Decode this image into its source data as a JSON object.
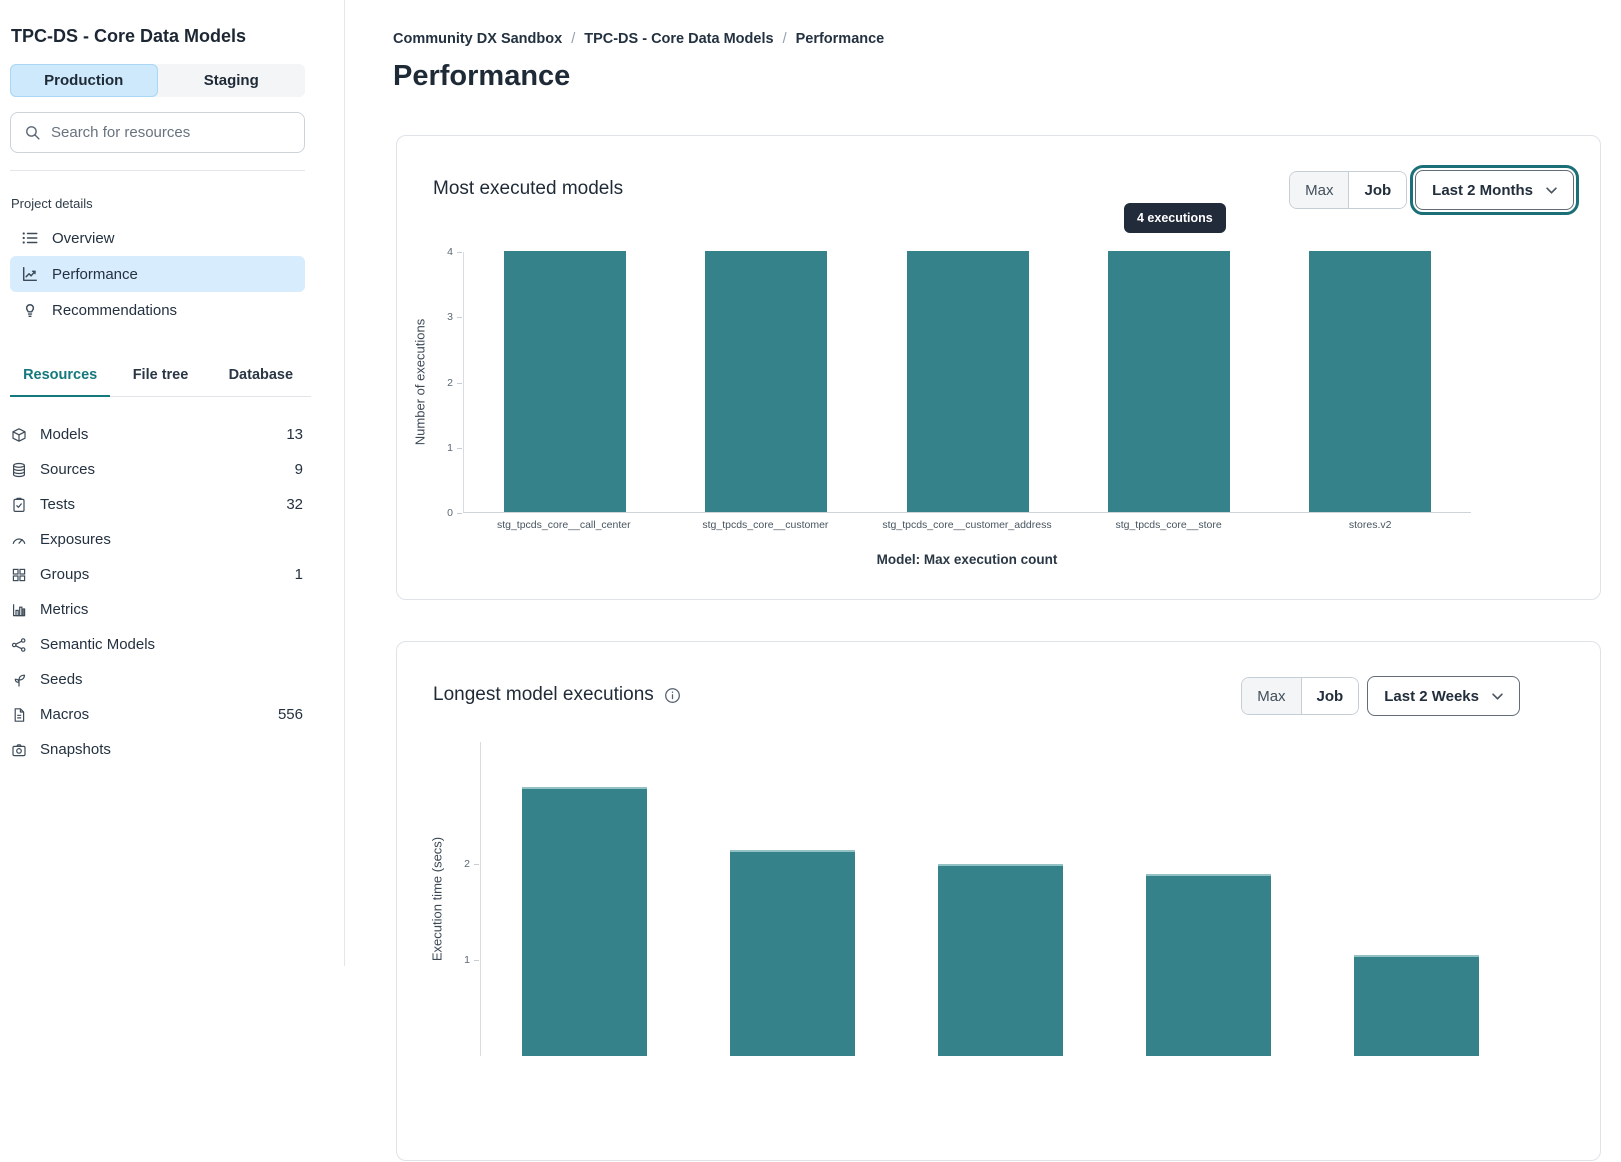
{
  "sidebar": {
    "title": "TPC-DS - Core Data Models",
    "env_tabs": [
      {
        "label": "Production"
      },
      {
        "label": "Staging"
      }
    ],
    "search": {
      "placeholder": "Search for resources"
    },
    "section_label": "Project details",
    "nav": [
      {
        "label": "Overview"
      },
      {
        "label": "Performance"
      },
      {
        "label": "Recommendations"
      }
    ],
    "resource_tabs": [
      {
        "label": "Resources"
      },
      {
        "label": "File tree"
      },
      {
        "label": "Database"
      }
    ],
    "resources": [
      {
        "label": "Models",
        "count": "13"
      },
      {
        "label": "Sources",
        "count": "9"
      },
      {
        "label": "Tests",
        "count": "32"
      },
      {
        "label": "Exposures",
        "count": ""
      },
      {
        "label": "Groups",
        "count": "1"
      },
      {
        "label": "Metrics",
        "count": ""
      },
      {
        "label": "Semantic Models",
        "count": ""
      },
      {
        "label": "Seeds",
        "count": ""
      },
      {
        "label": "Macros",
        "count": "556"
      },
      {
        "label": "Snapshots",
        "count": ""
      }
    ]
  },
  "breadcrumb": {
    "items": [
      "Community DX Sandbox",
      "TPC-DS - Core Data Models",
      "Performance"
    ],
    "separator": "/"
  },
  "page_title": "Performance",
  "cards": [
    {
      "title": "Most executed models",
      "toggle": {
        "max": "Max",
        "job": "Job"
      },
      "dropdown": "Last 2 Months",
      "tooltip": "4 executions"
    },
    {
      "title": "Longest model executions",
      "toggle": {
        "max": "Max",
        "job": "Job"
      },
      "dropdown": "Last 2 Weeks"
    }
  ],
  "colors": {
    "bar_teal": "#35828a",
    "accent_teal": "#15787d",
    "highlight_blue": "#cde9fb",
    "tooltip_bg": "#222b3a"
  },
  "chart_data": [
    {
      "type": "bar",
      "title": "Most executed models",
      "categories": [
        "stg_tpcds_core__call_center",
        "stg_tpcds_core__customer",
        "stg_tpcds_core__customer_address",
        "stg_tpcds_core__store",
        "stores.v2"
      ],
      "values": [
        4,
        4,
        4,
        4,
        4
      ],
      "xlabel": "Model: Max execution count",
      "ylabel": "Number of executions",
      "ylim": [
        0,
        4
      ],
      "yticks": [
        0,
        1,
        2,
        3,
        4
      ],
      "grid": false,
      "legend": false,
      "tooltip": {
        "text": "4 executions",
        "category": "stg_tpcds_core__store"
      }
    },
    {
      "type": "bar",
      "title": "Longest model executions",
      "values": [
        2.8,
        2.15,
        2.0,
        1.9,
        1.05
      ],
      "ylabel": "Execution time (secs)",
      "yticks": [
        1,
        2
      ],
      "ylim": [
        0,
        2.9
      ],
      "grid": false,
      "legend": false
    }
  ]
}
